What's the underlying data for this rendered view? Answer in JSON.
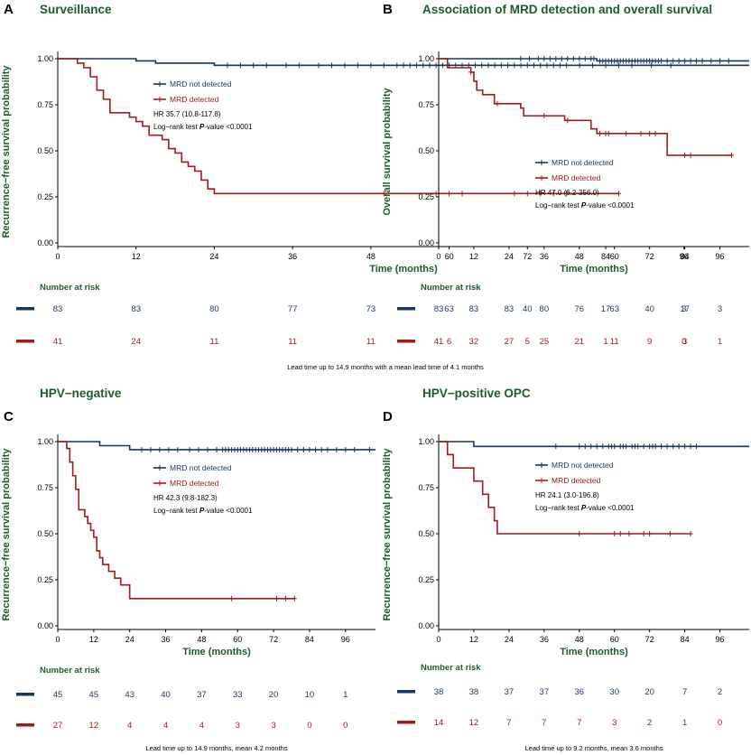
{
  "colors": {
    "not_detected": "#16365f",
    "detected": "#a01b1b",
    "title_green": "#1e5b2c"
  },
  "legend": {
    "not_detected": "MRD not detected",
    "detected": "MRD detected"
  },
  "risk_title": "Number at risk",
  "logrank_prefix": "Log−rank test ",
  "logrank_p": "P",
  "logrank_suffix": "-value <0.0001",
  "chart_data": [
    {
      "type": "line",
      "letter": "A",
      "title": "Surveillance",
      "xlabel": "Time (months)",
      "ylabel": "Recurrence−free survival probability",
      "xlim": [
        0,
        106
      ],
      "ylim": [
        0,
        1
      ],
      "xticks": [
        "0",
        "12",
        "24",
        "36",
        "48",
        "60",
        "72",
        "84",
        "96"
      ],
      "yticks": [
        "0.00",
        "0.25",
        "0.50",
        "0.75",
        "1.00"
      ],
      "hr": "HR 35.7 (10.8-117.8)",
      "series": [
        {
          "key": "not_detected",
          "steps": [
            [
              0,
              1.0
            ],
            [
              12,
              0.988
            ],
            [
              15,
              0.976
            ],
            [
              24,
              0.964
            ],
            [
              106,
              0.964
            ]
          ],
          "censor": [
            26,
            28,
            30,
            32,
            35,
            37,
            40,
            42,
            44,
            46,
            48,
            50,
            52,
            53,
            54,
            55,
            56,
            57,
            58,
            59,
            60,
            61,
            62,
            63,
            64,
            65,
            66,
            67,
            68,
            69,
            70,
            71,
            72,
            73,
            74,
            75,
            76,
            77,
            78,
            80,
            82,
            84,
            86,
            88,
            91,
            94
          ]
        },
        {
          "key": "detected",
          "steps": [
            [
              0,
              1.0
            ],
            [
              3,
              0.976
            ],
            [
              4,
              0.951
            ],
            [
              5,
              0.902
            ],
            [
              6,
              0.829
            ],
            [
              7,
              0.78
            ],
            [
              8,
              0.707
            ],
            [
              11,
              0.683
            ],
            [
              12,
              0.659
            ],
            [
              13,
              0.634
            ],
            [
              14,
              0.585
            ],
            [
              16,
              0.561
            ],
            [
              17,
              0.512
            ],
            [
              18,
              0.488
            ],
            [
              19,
              0.439
            ],
            [
              20,
              0.415
            ],
            [
              21,
              0.39
            ],
            [
              22,
              0.341
            ],
            [
              23,
              0.293
            ],
            [
              24,
              0.268
            ],
            [
              86,
              0.268
            ]
          ],
          "censor": [
            50,
            58,
            60,
            62,
            70,
            72,
            74,
            76,
            78,
            86
          ]
        }
      ],
      "risk": {
        "not_detected": [
          "83",
          "83",
          "80",
          "77",
          "73",
          "63",
          "40",
          "17",
          "3"
        ],
        "detected": [
          "41",
          "24",
          "11",
          "11",
          "11",
          "6",
          "5",
          "1",
          "0"
        ]
      },
      "footnote": "Lead time up to 14.9 months with a mean lead time of 4.1 months"
    },
    {
      "type": "line",
      "letter": "B",
      "title": "Association of MRD detection and overall survival",
      "xlabel": "Time (months)",
      "ylabel": "Overall survival probability",
      "xlim": [
        0,
        106
      ],
      "ylim": [
        0,
        1
      ],
      "xticks": [
        "0",
        "12",
        "24",
        "36",
        "48",
        "60",
        "72",
        "84",
        "96"
      ],
      "yticks": [
        "0.00",
        "0.25",
        "0.50",
        "0.75",
        "1.00"
      ],
      "hr": "HR 47.0 (6.2-356.0)",
      "series": [
        {
          "key": "not_detected",
          "steps": [
            [
              0,
              1.0
            ],
            [
              54,
              0.988
            ],
            [
              106,
              0.988
            ]
          ],
          "censor": [
            28,
            31,
            34,
            36,
            38,
            40,
            42,
            44,
            46,
            48,
            50,
            52,
            53,
            55,
            56,
            57,
            58,
            59,
            60,
            61,
            62,
            63,
            64,
            65,
            66,
            67,
            68,
            69,
            70,
            71,
            72,
            73,
            74,
            75,
            76,
            78,
            80,
            82,
            84,
            86,
            88,
            90,
            93,
            96,
            99
          ]
        },
        {
          "key": "detected",
          "steps": [
            [
              0,
              1.0
            ],
            [
              3,
              0.951
            ],
            [
              11,
              0.927
            ],
            [
              12,
              0.878
            ],
            [
              13,
              0.829
            ],
            [
              15,
              0.805
            ],
            [
              19,
              0.756
            ],
            [
              28,
              0.732
            ],
            [
              29,
              0.69
            ],
            [
              43,
              0.665
            ],
            [
              52,
              0.619
            ],
            [
              54,
              0.594
            ],
            [
              78,
              0.476
            ],
            [
              100,
              0.476
            ]
          ],
          "censor": [
            11,
            20,
            36,
            44,
            55,
            57,
            58,
            64,
            69,
            72,
            74,
            84,
            86,
            100
          ]
        }
      ],
      "risk": {
        "not_detected": [
          "83",
          "83",
          "83",
          "80",
          "76",
          "63",
          "40",
          "17",
          "3"
        ],
        "detected": [
          "41",
          "32",
          "27",
          "25",
          "21",
          "11",
          "9",
          "3",
          "1"
        ]
      }
    },
    {
      "type": "line",
      "letter": "C",
      "title": "HPV−negative",
      "xlabel": "Time (months)",
      "ylabel": "Recurrence−free survival probability",
      "xlim": [
        0,
        106
      ],
      "ylim": [
        0,
        1
      ],
      "xticks": [
        "0",
        "12",
        "24",
        "36",
        "48",
        "60",
        "72",
        "84",
        "96"
      ],
      "yticks": [
        "0.00",
        "0.25",
        "0.50",
        "0.75",
        "1.00"
      ],
      "hr": "HR 42.3 (9.8-182.3)",
      "series": [
        {
          "key": "not_detected",
          "steps": [
            [
              0,
              1.0
            ],
            [
              14,
              0.978
            ],
            [
              24,
              0.956
            ],
            [
              106,
              0.956
            ]
          ],
          "censor": [
            28,
            31,
            34,
            37,
            40,
            44,
            47,
            50,
            53,
            55,
            56,
            57,
            58,
            59,
            60,
            61,
            62,
            63,
            64,
            65,
            66,
            67,
            68,
            69,
            70,
            71,
            72,
            73,
            74,
            75,
            76,
            77,
            78,
            80,
            82,
            84,
            86,
            88,
            90,
            93,
            96,
            99,
            104
          ]
        },
        {
          "key": "detected",
          "steps": [
            [
              0,
              1.0
            ],
            [
              3,
              0.963
            ],
            [
              4,
              0.889
            ],
            [
              5,
              0.815
            ],
            [
              6,
              0.741
            ],
            [
              7,
              0.63
            ],
            [
              9,
              0.593
            ],
            [
              10,
              0.556
            ],
            [
              11,
              0.519
            ],
            [
              12,
              0.481
            ],
            [
              13,
              0.407
            ],
            [
              14,
              0.37
            ],
            [
              15,
              0.333
            ],
            [
              17,
              0.296
            ],
            [
              19,
              0.259
            ],
            [
              21,
              0.222
            ],
            [
              24,
              0.148
            ],
            [
              79,
              0.148
            ]
          ],
          "censor": [
            58,
            73,
            76,
            79
          ]
        }
      ],
      "risk": {
        "not_detected": [
          "45",
          "45",
          "43",
          "40",
          "37",
          "33",
          "20",
          "10",
          "1"
        ],
        "detected": [
          "27",
          "12",
          "4",
          "4",
          "4",
          "3",
          "3",
          "0",
          "0"
        ]
      },
      "footnote": "Lead time up to 14.9 months, mean 4.2 months"
    },
    {
      "type": "line",
      "letter": "D",
      "title": "HPV−positive OPC",
      "xlabel": "Time (months)",
      "ylabel": "Recurrence−free survival probability",
      "xlim": [
        0,
        106
      ],
      "ylim": [
        0,
        1
      ],
      "xticks": [
        "0",
        "12",
        "24",
        "36",
        "48",
        "60",
        "72",
        "84",
        "96"
      ],
      "yticks": [
        "0.00",
        "0.25",
        "0.50",
        "0.75",
        "1.00"
      ],
      "hr": "HR 24.1 (3.0-196.8)",
      "series": [
        {
          "key": "not_detected",
          "steps": [
            [
              0,
              1.0
            ],
            [
              12,
              0.974
            ],
            [
              106,
              0.974
            ]
          ],
          "censor": [
            40,
            48,
            50,
            52,
            54,
            56,
            58,
            59,
            60,
            62,
            63,
            64,
            66,
            67,
            68,
            70,
            72,
            73,
            74,
            76,
            78,
            80,
            82,
            84,
            86,
            88
          ]
        },
        {
          "key": "detected",
          "steps": [
            [
              0,
              1.0
            ],
            [
              3,
              0.929
            ],
            [
              5,
              0.857
            ],
            [
              12,
              0.786
            ],
            [
              15,
              0.714
            ],
            [
              17,
              0.643
            ],
            [
              19,
              0.571
            ],
            [
              20,
              0.5
            ],
            [
              86,
              0.5
            ]
          ],
          "censor": [
            48,
            60,
            62,
            65,
            70,
            72,
            79,
            86
          ]
        }
      ],
      "risk": {
        "not_detected": [
          "38",
          "38",
          "37",
          "37",
          "36",
          "30",
          "20",
          "7",
          "2"
        ],
        "detected": [
          "14",
          "12",
          "7",
          "7",
          "7",
          "3",
          "2",
          "1",
          "0"
        ]
      },
      "footnote": "Lead time up to 9.2 months, mean 3.6 months"
    }
  ]
}
